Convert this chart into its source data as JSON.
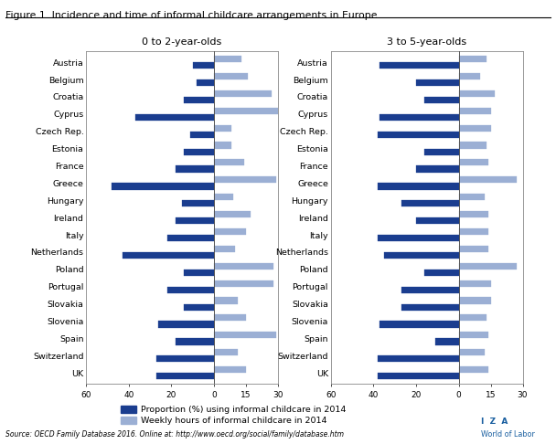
{
  "title": "Figure 1. Incidence and time of informal childcare arrangements in Europe",
  "subtitle_left": "0 to 2-year-olds",
  "subtitle_right": "3 to 5-year-olds",
  "source": "Source: OECD Family Database 2016. Online at: http://www.oecd.org/social/family/database.htm",
  "countries": [
    "Austria",
    "Belgium",
    "Croatia",
    "Cyprus",
    "Czech Rep.",
    "Estonia",
    "France",
    "Greece",
    "Hungary",
    "Ireland",
    "Italy",
    "Netherlands",
    "Poland",
    "Portugal",
    "Slovakia",
    "Slovenia",
    "Spain",
    "Switzerland",
    "UK"
  ],
  "panel1_proportion": [
    10,
    8,
    14,
    37,
    11,
    14,
    18,
    48,
    15,
    18,
    22,
    43,
    14,
    22,
    14,
    26,
    18,
    27,
    27
  ],
  "panel1_hours": [
    13,
    16,
    27,
    30,
    8,
    8,
    14,
    29,
    9,
    17,
    15,
    10,
    28,
    28,
    11,
    15,
    29,
    11,
    15
  ],
  "panel2_proportion": [
    37,
    20,
    16,
    37,
    38,
    16,
    20,
    38,
    27,
    20,
    38,
    35,
    16,
    27,
    27,
    37,
    11,
    38,
    38
  ],
  "panel2_hours": [
    13,
    10,
    17,
    15,
    15,
    13,
    14,
    27,
    12,
    14,
    14,
    14,
    27,
    15,
    15,
    13,
    14,
    12,
    14
  ],
  "color_proportion": "#1a3d8f",
  "color_hours": "#9bafd4",
  "legend_label1": "Proportion (%) using informal childcare in 2014",
  "legend_label2": "Weekly hours of informal childcare in 2014",
  "background_color": "#ffffff",
  "figsize": [
    6.08,
    4.86
  ],
  "dpi": 100
}
